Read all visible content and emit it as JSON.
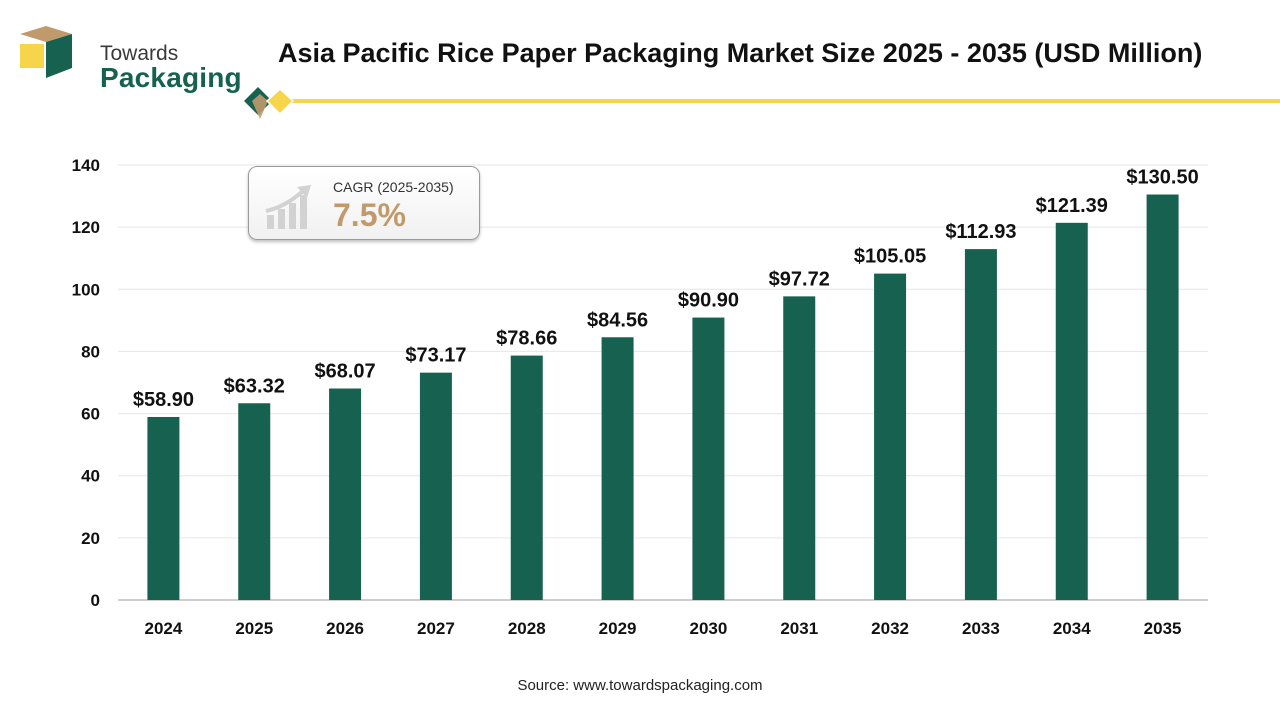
{
  "brand": {
    "line1": "Towards",
    "line2": "Packaging"
  },
  "colors": {
    "bar": "#16614f",
    "accent_gold": "#c09a6b",
    "accent_yellow": "#f7d54a",
    "brand_green": "#16614f"
  },
  "cagr": {
    "label": "CAGR (2025-2035)",
    "value": "7.5%",
    "icon": "growth-chart-icon"
  },
  "source": "Source: www.towardspackaging.com",
  "chart_data": {
    "type": "bar",
    "title": "Asia Pacific Rice Paper Packaging Market Size 2025 - 2035 (USD Million)",
    "xlabel": "",
    "ylabel": "",
    "categories": [
      "2024",
      "2025",
      "2026",
      "2027",
      "2028",
      "2029",
      "2030",
      "2031",
      "2032",
      "2033",
      "2034",
      "2035"
    ],
    "values": [
      58.9,
      63.32,
      68.07,
      73.17,
      78.66,
      84.56,
      90.9,
      97.72,
      105.05,
      112.93,
      121.39,
      130.5
    ],
    "data_labels": [
      "$58.90",
      "$63.32",
      "$68.07",
      "$73.17",
      "$78.66",
      "$84.56",
      "$90.90",
      "$97.72",
      "$105.05",
      "$112.93",
      "$121.39",
      "$130.50"
    ],
    "ylim": [
      0,
      140
    ],
    "yticks": [
      0,
      20,
      40,
      60,
      80,
      100,
      120,
      140
    ],
    "grid": true,
    "legend": "none"
  }
}
